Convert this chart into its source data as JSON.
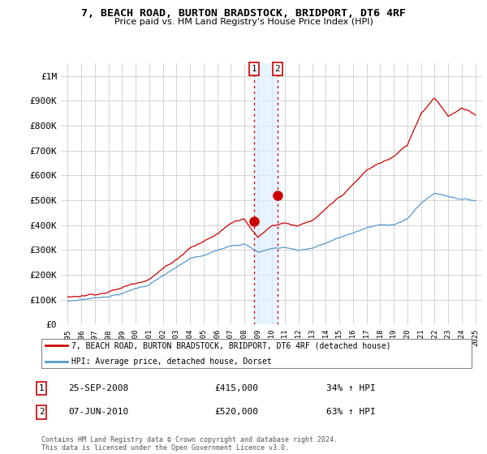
{
  "title": "7, BEACH ROAD, BURTON BRADSTOCK, BRIDPORT, DT6 4RF",
  "subtitle": "Price paid vs. HM Land Registry's House Price Index (HPI)",
  "legend_line1": "7, BEACH ROAD, BURTON BRADSTOCK, BRIDPORT, DT6 4RF (detached house)",
  "legend_line2": "HPI: Average price, detached house, Dorset",
  "transaction1_date": "25-SEP-2008",
  "transaction1_price": "£415,000",
  "transaction1_hpi": "34% ↑ HPI",
  "transaction2_date": "07-JUN-2010",
  "transaction2_price": "£520,000",
  "transaction2_hpi": "63% ↑ HPI",
  "footer": "Contains HM Land Registry data © Crown copyright and database right 2024.\nThis data is licensed under the Open Government Licence v3.0.",
  "hpi_color": "#5599cc",
  "price_color": "#cc0000",
  "shading_color": "#ddeeff",
  "ylim": [
    0,
    1050000
  ],
  "yticks": [
    0,
    100000,
    200000,
    300000,
    400000,
    500000,
    600000,
    700000,
    800000,
    900000,
    1000000
  ],
  "ytick_labels": [
    "£0",
    "£100K",
    "£200K",
    "£300K",
    "£400K",
    "£500K",
    "£600K",
    "£700K",
    "£800K",
    "£900K",
    "£1M"
  ],
  "transaction1_x": 2008.73,
  "transaction1_y": 415000,
  "transaction2_x": 2010.44,
  "transaction2_y": 520000,
  "xlim_left": 1994.5,
  "xlim_right": 2025.5
}
